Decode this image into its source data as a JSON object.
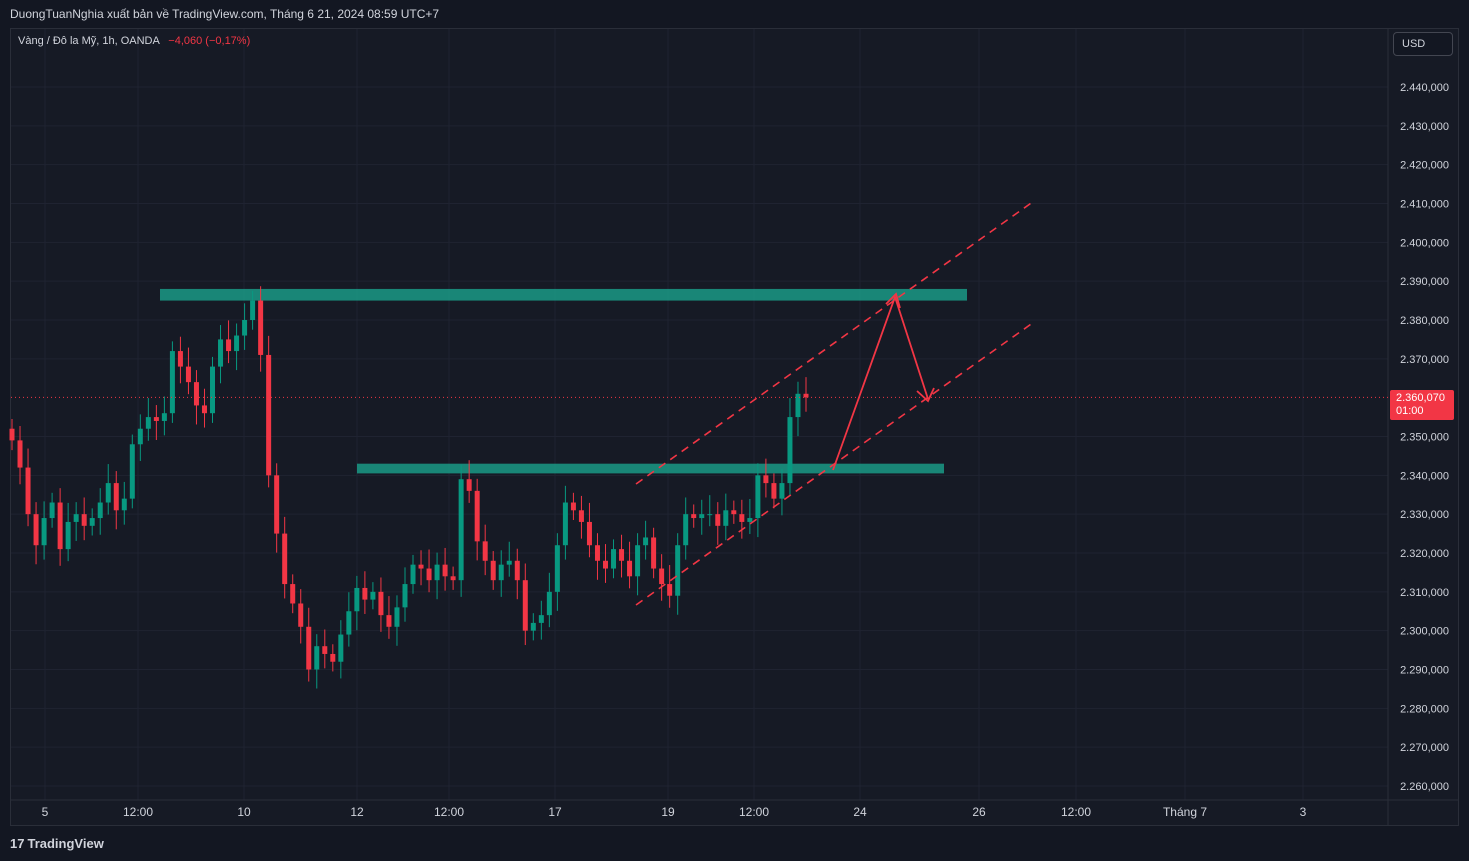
{
  "header": {
    "publisher_line": "DuongTuanNghia xuất bản về TradingView.com, Tháng 6 21, 2024 08:59 UTC+7"
  },
  "legend": {
    "symbol": "Vàng / Đô la Mỹ, 1h, OANDA",
    "change": "−4,060 (−0,17%)"
  },
  "currency_button": "USD",
  "last_price": {
    "value_label": "2.360,070",
    "countdown": "01:00"
  },
  "branding": {
    "logo_mark": "17",
    "logo_text": "TradingView"
  },
  "colors": {
    "up": "#089981",
    "down": "#f23645",
    "zone": "#1a9a86",
    "drawing": "#f23645",
    "grid": "#1f2331",
    "background": "#161a25"
  },
  "chart_data": {
    "type": "candlestick",
    "symbol": "XAUUSD",
    "timeframe": "1h",
    "ylim": [
      2252000,
      2460000
    ],
    "y_ticks": [
      {
        "value": 2440000,
        "label": "2.440,000"
      },
      {
        "value": 2430000,
        "label": "2.430,000"
      },
      {
        "value": 2420000,
        "label": "2.420,000"
      },
      {
        "value": 2410000,
        "label": "2.410,000"
      },
      {
        "value": 2400000,
        "label": "2.400,000"
      },
      {
        "value": 2390000,
        "label": "2.390,000"
      },
      {
        "value": 2380000,
        "label": "2.380,000"
      },
      {
        "value": 2370000,
        "label": "2.370,000"
      },
      {
        "value": 2350000,
        "label": "2.350,000"
      },
      {
        "value": 2340000,
        "label": "2.340,000"
      },
      {
        "value": 2330000,
        "label": "2.330,000"
      },
      {
        "value": 2320000,
        "label": "2.320,000"
      },
      {
        "value": 2310000,
        "label": "2.310,000"
      },
      {
        "value": 2300000,
        "label": "2.300,000"
      },
      {
        "value": 2290000,
        "label": "2.290,000"
      },
      {
        "value": 2280000,
        "label": "2.280,000"
      },
      {
        "value": 2270000,
        "label": "2.270,000"
      },
      {
        "value": 2260000,
        "label": "2.260,000"
      }
    ],
    "x_ticks": [
      "5",
      "12:00",
      "10",
      "12",
      "12:00",
      "17",
      "19",
      "12:00",
      "24",
      "26",
      "12:00",
      "Tháng 7",
      "3"
    ],
    "last_price": 2360070,
    "series_close": [
      2349000,
      2342000,
      2330000,
      2322000,
      2329000,
      2333000,
      2321000,
      2328000,
      2330000,
      2327000,
      2329000,
      2333000,
      2338000,
      2331000,
      2334000,
      2348000,
      2352000,
      2355000,
      2354000,
      2356000,
      2372000,
      2368000,
      2364000,
      2358000,
      2356000,
      2368000,
      2375000,
      2372000,
      2376000,
      2380000,
      2385000,
      2371000,
      2340000,
      2325000,
      2312000,
      2307000,
      2301000,
      2290000,
      2296000,
      2294000,
      2292000,
      2299000,
      2305000,
      2311000,
      2308000,
      2310000,
      2304000,
      2301000,
      2306000,
      2312000,
      2317000,
      2316000,
      2313000,
      2317000,
      2314000,
      2313000,
      2339000,
      2336000,
      2323000,
      2318000,
      2313000,
      2317000,
      2318000,
      2313000,
      2300000,
      2302000,
      2304000,
      2310000,
      2322000,
      2333000,
      2331000,
      2328000,
      2322000,
      2318000,
      2316000,
      2321000,
      2318000,
      2314000,
      2322000,
      2324000,
      2316000,
      2312000,
      2309000,
      2322000,
      2330000,
      2329000,
      2330000,
      2330000,
      2327000,
      2331000,
      2330000,
      2328000,
      2329000,
      2340000,
      2338000,
      2334000,
      2338000,
      2355000,
      2361000,
      2360070
    ],
    "zones": [
      {
        "from_price": 2385000,
        "to_price": 2388000
      },
      {
        "from_price": 2340500,
        "to_price": 2343000
      }
    ],
    "channel_lines_dashed": 2,
    "projection_path": "up to resistance, then down to channel"
  }
}
